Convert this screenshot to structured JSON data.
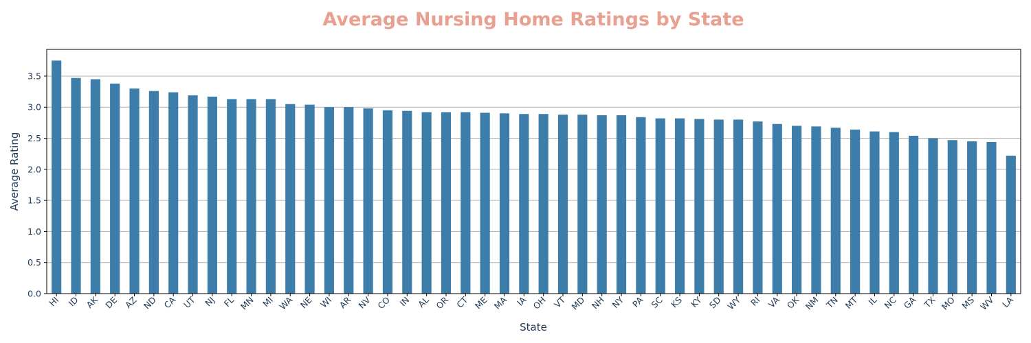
{
  "chart_data": {
    "type": "bar",
    "title": "Average Nursing Home Ratings by State",
    "xlabel": "State",
    "ylabel": "Average Rating",
    "ylim": [
      0,
      3.93
    ],
    "yticks": [
      "0.0",
      "0.5",
      "1.0",
      "1.5",
      "2.0",
      "2.5",
      "3.0",
      "3.5"
    ],
    "grid": "horizontal",
    "legend": "none",
    "categories": [
      "HI",
      "ID",
      "AK",
      "DE",
      "AZ",
      "ND",
      "CA",
      "UT",
      "NJ",
      "FL",
      "MN",
      "MI",
      "WA",
      "NE",
      "WI",
      "AR",
      "NV",
      "CO",
      "IN",
      "AL",
      "OR",
      "CT",
      "ME",
      "MA",
      "IA",
      "OH",
      "VT",
      "MD",
      "NH",
      "NY",
      "PA",
      "SC",
      "KS",
      "KY",
      "SD",
      "WY",
      "RI",
      "VA",
      "OK",
      "NM",
      "TN",
      "MT",
      "IL",
      "NC",
      "GA",
      "TX",
      "MO",
      "MS",
      "WV",
      "LA"
    ],
    "values": [
      3.75,
      3.47,
      3.45,
      3.38,
      3.3,
      3.26,
      3.24,
      3.19,
      3.17,
      3.13,
      3.13,
      3.13,
      3.05,
      3.04,
      3.0,
      3.0,
      2.98,
      2.95,
      2.94,
      2.92,
      2.92,
      2.92,
      2.91,
      2.9,
      2.89,
      2.89,
      2.88,
      2.88,
      2.87,
      2.87,
      2.84,
      2.82,
      2.82,
      2.81,
      2.8,
      2.8,
      2.77,
      2.73,
      2.7,
      2.69,
      2.67,
      2.64,
      2.61,
      2.6,
      2.54,
      2.5,
      2.47,
      2.45,
      2.44,
      2.22
    ],
    "colors": {
      "bar": "#3d7daa",
      "title": "#e8a090",
      "text": "#1f3a55",
      "grid": "#b0b0b0",
      "axis": "#000000"
    }
  }
}
